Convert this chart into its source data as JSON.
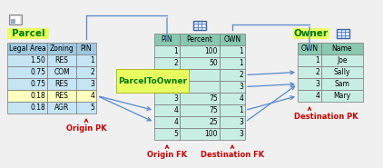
{
  "parcel_title": "Parcel",
  "parcel_headers": [
    "Legal Area",
    "Zoning",
    "PIN"
  ],
  "parcel_rows": [
    [
      "1.50",
      "RES",
      "1"
    ],
    [
      "0.75",
      "COM",
      "2"
    ],
    [
      "0.75",
      "RES",
      "3"
    ],
    [
      "0.18",
      "RES",
      "4"
    ],
    [
      "0.18",
      "AGR",
      "5"
    ]
  ],
  "parcel_row_colors": [
    "#c5e5f5",
    "#c5e5f5",
    "#c5e5f5",
    "#fefebe",
    "#c5e5f5"
  ],
  "middle_title": "ParcelToOwner",
  "middle_headers": [
    "PIN",
    "Percent",
    "OWN"
  ],
  "middle_rows_top": [
    [
      "1",
      "100",
      "1"
    ],
    [
      "2",
      "50",
      "1"
    ]
  ],
  "middle_rows_bottom": [
    [
      "3",
      "75",
      "4"
    ],
    [
      "4",
      "75",
      "1"
    ],
    [
      "4",
      "25",
      "3"
    ],
    [
      "5",
      "100",
      "3"
    ]
  ],
  "middle_hidden_own": [
    "2",
    "3"
  ],
  "middle_row_color": "#c8eee4",
  "owner_title": "Owner",
  "owner_headers": [
    "OWN",
    "Name"
  ],
  "owner_rows": [
    [
      "1",
      "Joe"
    ],
    [
      "2",
      "Sally"
    ],
    [
      "3",
      "Sam"
    ],
    [
      "4",
      "Mary"
    ]
  ],
  "owner_row_color": "#c8eee4",
  "parcel_header_color": "#9fc8e0",
  "middle_header_color": "#88c8b0",
  "owner_header_color": "#88c8b0",
  "parcel_title_bg": "#e8ff60",
  "middle_title_bg": "#e8ff60",
  "owner_title_bg": "#e8ff60",
  "arrow_color": "#5588cc",
  "label_color": "#cc0000",
  "origin_pk": "Origin PK",
  "origin_fk": "Origin FK",
  "destination_fk": "Destination FK",
  "destination_pk": "Destination PK",
  "bg_color": "#f0f0f0"
}
